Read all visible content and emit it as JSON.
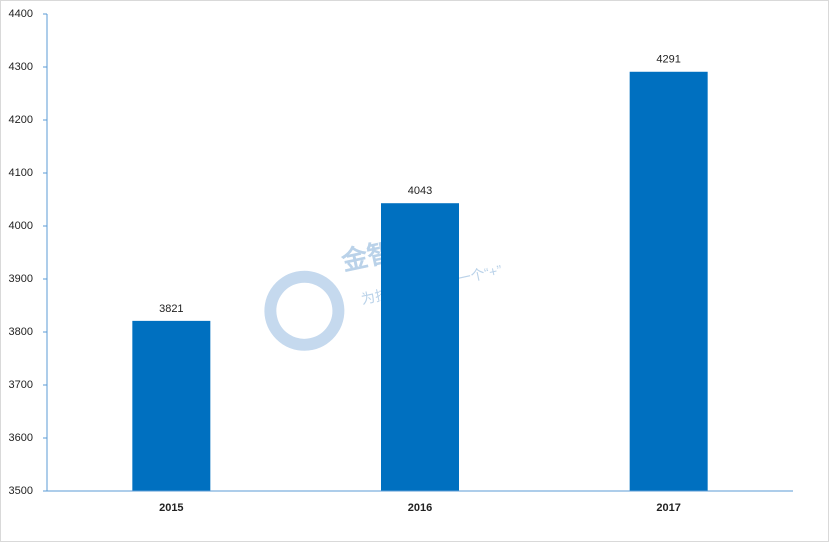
{
  "chart_data": {
    "type": "bar",
    "categories": [
      "2015",
      "2016",
      "2017"
    ],
    "values": [
      3821,
      4043,
      4291
    ],
    "color": "#0070c0",
    "ylim": [
      3500,
      4400
    ],
    "yticks": [
      3500,
      3600,
      3700,
      3800,
      3900,
      4000,
      4100,
      4200,
      4300,
      4400
    ],
    "grid": false,
    "watermark": {
      "title": "金智创新",
      "subtitle": "为技术创新寻找一个“+”"
    }
  }
}
